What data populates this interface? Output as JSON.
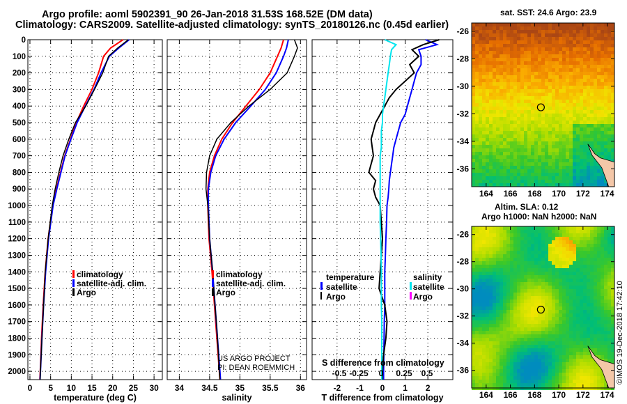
{
  "chart_data": [
    {
      "type": "line",
      "title": "Argo profile: aoml 5902391_90 26-Jan-2018 31.53S 168.52E (DM data)",
      "subtitle": "Climatology: CARS2009. Satellite-adjusted climatology: synTS_20180126.nc (0.45d earlier)",
      "xlabel": "temperature (deg C)",
      "ylabel": "",
      "xlim": [
        -0.5,
        32
      ],
      "ylim": [
        2050,
        0
      ],
      "xticks": [
        0,
        5,
        10,
        15,
        20,
        25,
        30
      ],
      "yticks": [
        0,
        100,
        200,
        300,
        400,
        500,
        600,
        700,
        800,
        900,
        1000,
        1100,
        1200,
        1300,
        1400,
        1500,
        1600,
        1700,
        1800,
        1900,
        2000
      ],
      "grid": true,
      "legend": [
        "climatology",
        "satellite-adj. clim.",
        "Argo"
      ],
      "depth": [
        0,
        50,
        100,
        200,
        300,
        400,
        500,
        600,
        700,
        800,
        900,
        1000,
        1200,
        1400,
        1600,
        1800,
        2000,
        2050
      ],
      "series": [
        {
          "name": "climatology",
          "color": "#ff0000",
          "values": [
            22.5,
            19.5,
            17.8,
            16.6,
            15.0,
            13.0,
            11.2,
            9.8,
            8.4,
            7.4,
            6.4,
            5.5,
            4.4,
            3.7,
            3.2,
            2.8,
            2.5,
            2.4
          ]
        },
        {
          "name": "satellite-adj. clim.",
          "color": "#0000ff",
          "values": [
            24.0,
            21.5,
            19.2,
            17.2,
            15.5,
            13.4,
            11.4,
            9.9,
            8.5,
            7.5,
            6.5,
            5.6,
            4.5,
            3.8,
            3.3,
            2.9,
            2.55,
            2.45
          ]
        },
        {
          "name": "Argo",
          "color": "#000000",
          "values": [
            23.8,
            21.2,
            19.0,
            17.6,
            15.6,
            13.5,
            11.0,
            9.4,
            8.0,
            7.0,
            6.1,
            5.4,
            4.4,
            3.7,
            3.3,
            2.9,
            2.55,
            2.45
          ]
        }
      ]
    },
    {
      "type": "line",
      "xlabel": "salinity",
      "xlim": [
        33.8,
        36.1
      ],
      "ylim": [
        2050,
        0
      ],
      "xticks": [
        34,
        34.5,
        35,
        35.5,
        36
      ],
      "grid": true,
      "legend": [
        "climatology",
        "satellite-adj. clim.",
        "Argo"
      ],
      "annotation": [
        "US ARGO PROJECT",
        "PI: DEAN ROEMMICH"
      ],
      "depth": [
        0,
        50,
        100,
        200,
        300,
        400,
        500,
        600,
        700,
        800,
        900,
        1000,
        1200,
        1400,
        1600,
        1800,
        2000,
        2050
      ],
      "series": [
        {
          "name": "climatology",
          "color": "#ff0000",
          "values": [
            35.72,
            35.68,
            35.62,
            35.5,
            35.32,
            35.1,
            34.88,
            34.7,
            34.58,
            34.5,
            34.47,
            34.47,
            34.49,
            34.54,
            34.58,
            34.62,
            34.66,
            34.67
          ]
        },
        {
          "name": "satellite-adj. clim.",
          "color": "#0000ff",
          "values": [
            35.8,
            35.77,
            35.72,
            35.6,
            35.42,
            35.18,
            34.93,
            34.74,
            34.6,
            34.52,
            34.48,
            34.48,
            34.5,
            34.55,
            34.59,
            34.63,
            34.67,
            34.68
          ]
        },
        {
          "name": "Argo",
          "color": "#000000",
          "values": [
            35.9,
            35.95,
            35.9,
            35.78,
            35.5,
            35.15,
            34.85,
            34.62,
            34.5,
            34.45,
            34.44,
            34.47,
            34.5,
            34.55,
            34.59,
            34.63,
            34.66,
            34.67
          ]
        }
      ]
    },
    {
      "type": "line",
      "xlabel": "T difference from climatology",
      "xlabel2": "S difference from climatology",
      "xlim": [
        -3.1,
        3.1
      ],
      "ylim": [
        2050,
        0
      ],
      "xticks": [
        -2,
        -1,
        0,
        1,
        2
      ],
      "xticks2": [
        "-0.5",
        "-0.25",
        "0",
        "0.25",
        "0.5"
      ],
      "grid": true,
      "legend_temperature": {
        "title": "temperature",
        "items": [
          "satellite",
          "Argo"
        ]
      },
      "legend_salinity": {
        "title": "salinity",
        "items": [
          "satellite",
          "Argo"
        ]
      },
      "depth": [
        0,
        30,
        60,
        100,
        150,
        200,
        250,
        300,
        350,
        400,
        450,
        500,
        550,
        600,
        650,
        700,
        750,
        800,
        850,
        900,
        950,
        1000,
        1100,
        1200,
        1300,
        1400,
        1500,
        1600,
        1700,
        1800,
        1900,
        2000,
        2050
      ],
      "series": [
        {
          "name": "temperature satellite",
          "color": "#0000ff",
          "values": [
            1.9,
            2.4,
            1.6,
            1.7,
            1.7,
            1.5,
            1.4,
            1.3,
            1.2,
            1.1,
            1.0,
            0.8,
            0.7,
            0.6,
            0.5,
            0.45,
            0.4,
            0.35,
            0.3,
            0.28,
            0.25,
            0.2,
            0.18,
            0.15,
            0.13,
            0.1,
            0.1,
            0.1,
            0.08,
            0.07,
            0.06,
            0.05,
            0.05
          ]
        },
        {
          "name": "temperature Argo",
          "color": "#000000",
          "values": [
            2.5,
            1.8,
            1.3,
            1.6,
            1.2,
            1.4,
            1.0,
            0.6,
            0.3,
            0.1,
            -0.1,
            -0.3,
            -0.4,
            -0.5,
            -0.45,
            -0.4,
            -0.5,
            -0.6,
            -0.3,
            -0.4,
            -0.3,
            -0.1,
            -0.05,
            0.0,
            -0.05,
            -0.1,
            -0.15,
            0.1,
            0.2,
            0.15,
            0.05,
            0.0,
            0.0
          ]
        },
        {
          "name": "salinity satellite",
          "color": "#00e5ee",
          "values": [
            0.1,
            0.6,
            0.4,
            0.35,
            0.3,
            0.25,
            0.2,
            0.15,
            0.1,
            0.05,
            0.0,
            0.0,
            -0.05,
            -0.05,
            -0.05,
            -0.1,
            -0.1,
            -0.1,
            -0.1,
            -0.1,
            -0.1,
            -0.1,
            -0.1,
            -0.08,
            -0.06,
            -0.05,
            -0.05,
            -0.05,
            -0.03,
            -0.03,
            -0.03,
            -0.03,
            -0.03
          ]
        }
      ]
    },
    {
      "type": "heatmap",
      "title": "sat. SST: 24.6 Argo: 23.9",
      "xticks": [
        164,
        166,
        168,
        170,
        172,
        174
      ],
      "yticks": [
        -26,
        -28,
        -30,
        -32,
        -34,
        -36
      ],
      "xlim": [
        162.8,
        174.6
      ],
      "ylim": [
        -37.3,
        -25.4
      ],
      "marker": {
        "lon": 168.52,
        "lat": -31.53
      }
    },
    {
      "type": "heatmap",
      "title": "Altim. SLA: 0.12",
      "subtitle": "Argo h1000: NaN h2000: NaN",
      "xticks": [
        164,
        166,
        168,
        170,
        172,
        174
      ],
      "yticks": [
        -26,
        -28,
        -30,
        -32,
        -34,
        -36
      ],
      "xlim": [
        162.8,
        174.6
      ],
      "ylim": [
        -37.3,
        -25.4
      ],
      "marker": {
        "lon": 168.52,
        "lat": -31.53
      }
    }
  ],
  "watermark": "©IMOS 19-Dec-2018 17:42:10"
}
